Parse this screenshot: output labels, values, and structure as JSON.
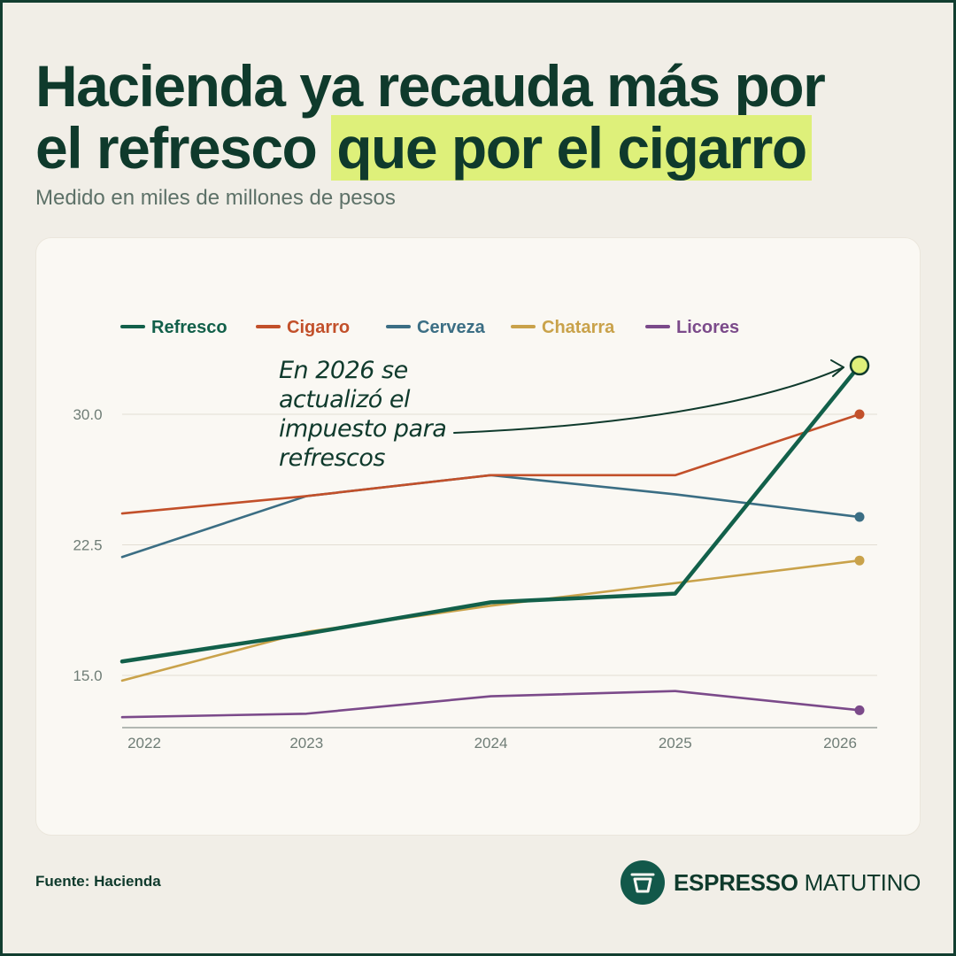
{
  "title": {
    "line1": "Hacienda ya recauda más por",
    "line2_plain": "el refresco ",
    "line2_highlight": "que por el cigarro"
  },
  "subtitle": "Medido en miles de millones de pesos",
  "footer": {
    "source": "Fuente: Hacienda",
    "brand_bold": "ESPRESSO",
    "brand_light": " MATUTINO"
  },
  "chart_data": {
    "type": "line",
    "x": [
      "2022",
      "2023",
      "2024",
      "2025",
      "2026"
    ],
    "yticks": [
      "15.0",
      "22.5",
      "30.0"
    ],
    "ylim": [
      12,
      33
    ],
    "grid": true,
    "legend_position": "top-left",
    "series": [
      {
        "name": "Licores",
        "color": "#7b4a8a",
        "values": [
          12.6,
          12.8,
          13.8,
          14.1,
          13.0
        ]
      },
      {
        "name": "Chatarra",
        "color": "#c9a24a",
        "values": [
          14.7,
          17.5,
          19.0,
          20.3,
          21.6
        ]
      },
      {
        "name": "Cerveza",
        "color": "#3b6e84",
        "values": [
          21.8,
          25.3,
          26.5,
          25.4,
          24.1
        ]
      },
      {
        "name": "Cigarro",
        "color": "#c2502a",
        "values": [
          24.3,
          25.3,
          26.5,
          26.5,
          30.0
        ]
      },
      {
        "name": "Refresco",
        "color": "#12604a",
        "values": [
          15.8,
          17.4,
          19.2,
          19.7,
          32.8
        ]
      }
    ],
    "legend_order": [
      "Refresco",
      "Cigarro",
      "Cerveza",
      "Chatarra",
      "Licores"
    ],
    "annotation": {
      "lines": [
        "En 2026 se",
        "actualizó el",
        "impuesto para",
        "refrescos"
      ],
      "target_series": "Refresco",
      "target_x": "2026"
    }
  }
}
